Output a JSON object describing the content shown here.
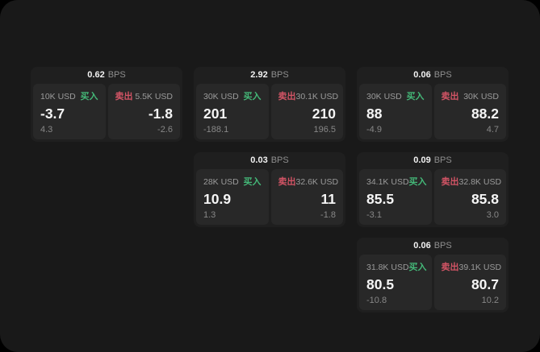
{
  "labels": {
    "bps_unit": "BPS",
    "buy": "买入",
    "sell": "卖出"
  },
  "colors": {
    "buy": "#44b878",
    "sell": "#d25465"
  },
  "cards": [
    {
      "bps": "0.62",
      "row": 1,
      "col": 1,
      "buy": {
        "size": "10K USD",
        "value": "-3.7",
        "sub": "4.3"
      },
      "sell": {
        "size": "5.5K USD",
        "value": "-1.8",
        "sub": "-2.6"
      }
    },
    {
      "bps": "2.92",
      "row": 1,
      "col": 2,
      "buy": {
        "size": "30K USD",
        "value": "201",
        "sub": "-188.1"
      },
      "sell": {
        "size": "30.1K USD",
        "value": "210",
        "sub": "196.5"
      }
    },
    {
      "bps": "0.06",
      "row": 1,
      "col": 3,
      "buy": {
        "size": "30K USD",
        "value": "88",
        "sub": "-4.9"
      },
      "sell": {
        "size": "30K USD",
        "value": "88.2",
        "sub": "4.7"
      }
    },
    {
      "bps": "0.03",
      "row": 2,
      "col": 2,
      "buy": {
        "size": "28K USD",
        "value": "10.9",
        "sub": "1.3"
      },
      "sell": {
        "size": "32.6K USD",
        "value": "11",
        "sub": "-1.8"
      }
    },
    {
      "bps": "0.09",
      "row": 2,
      "col": 3,
      "buy": {
        "size": "34.1K USD",
        "value": "85.5",
        "sub": "-3.1"
      },
      "sell": {
        "size": "32.8K USD",
        "value": "85.8",
        "sub": "3.0"
      }
    },
    {
      "bps": "0.06",
      "row": 3,
      "col": 3,
      "buy": {
        "size": "31.8K USD",
        "value": "80.5",
        "sub": "-10.8"
      },
      "sell": {
        "size": "39.1K USD",
        "value": "80.7",
        "sub": "10.2"
      }
    }
  ]
}
